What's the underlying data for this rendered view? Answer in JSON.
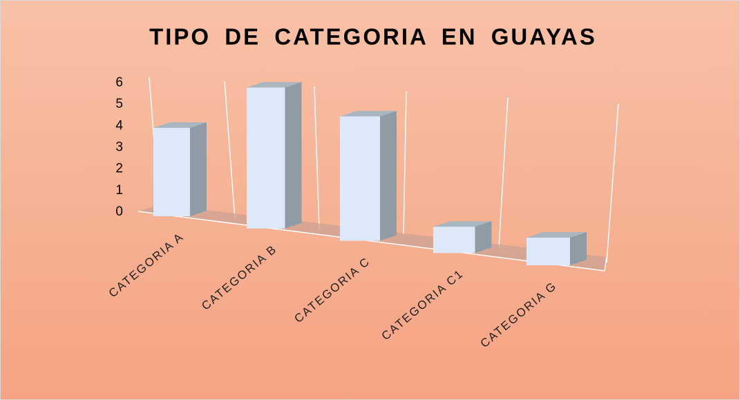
{
  "chart_data": {
    "type": "bar3d",
    "title": "TIPO DE CATEGORIA EN GUAYAS",
    "categories": [
      "CATEGORIA A",
      "CATEGORIA B",
      "CATEGORIA C",
      "CATEGORIA C1",
      "CATEGORIA G"
    ],
    "values": [
      4,
      6,
      5,
      1,
      1
    ],
    "color": "#dde9f8",
    "ylim": [
      0,
      6
    ],
    "yticks": [
      0,
      1,
      2,
      3,
      4,
      5,
      6
    ],
    "grid": false
  }
}
